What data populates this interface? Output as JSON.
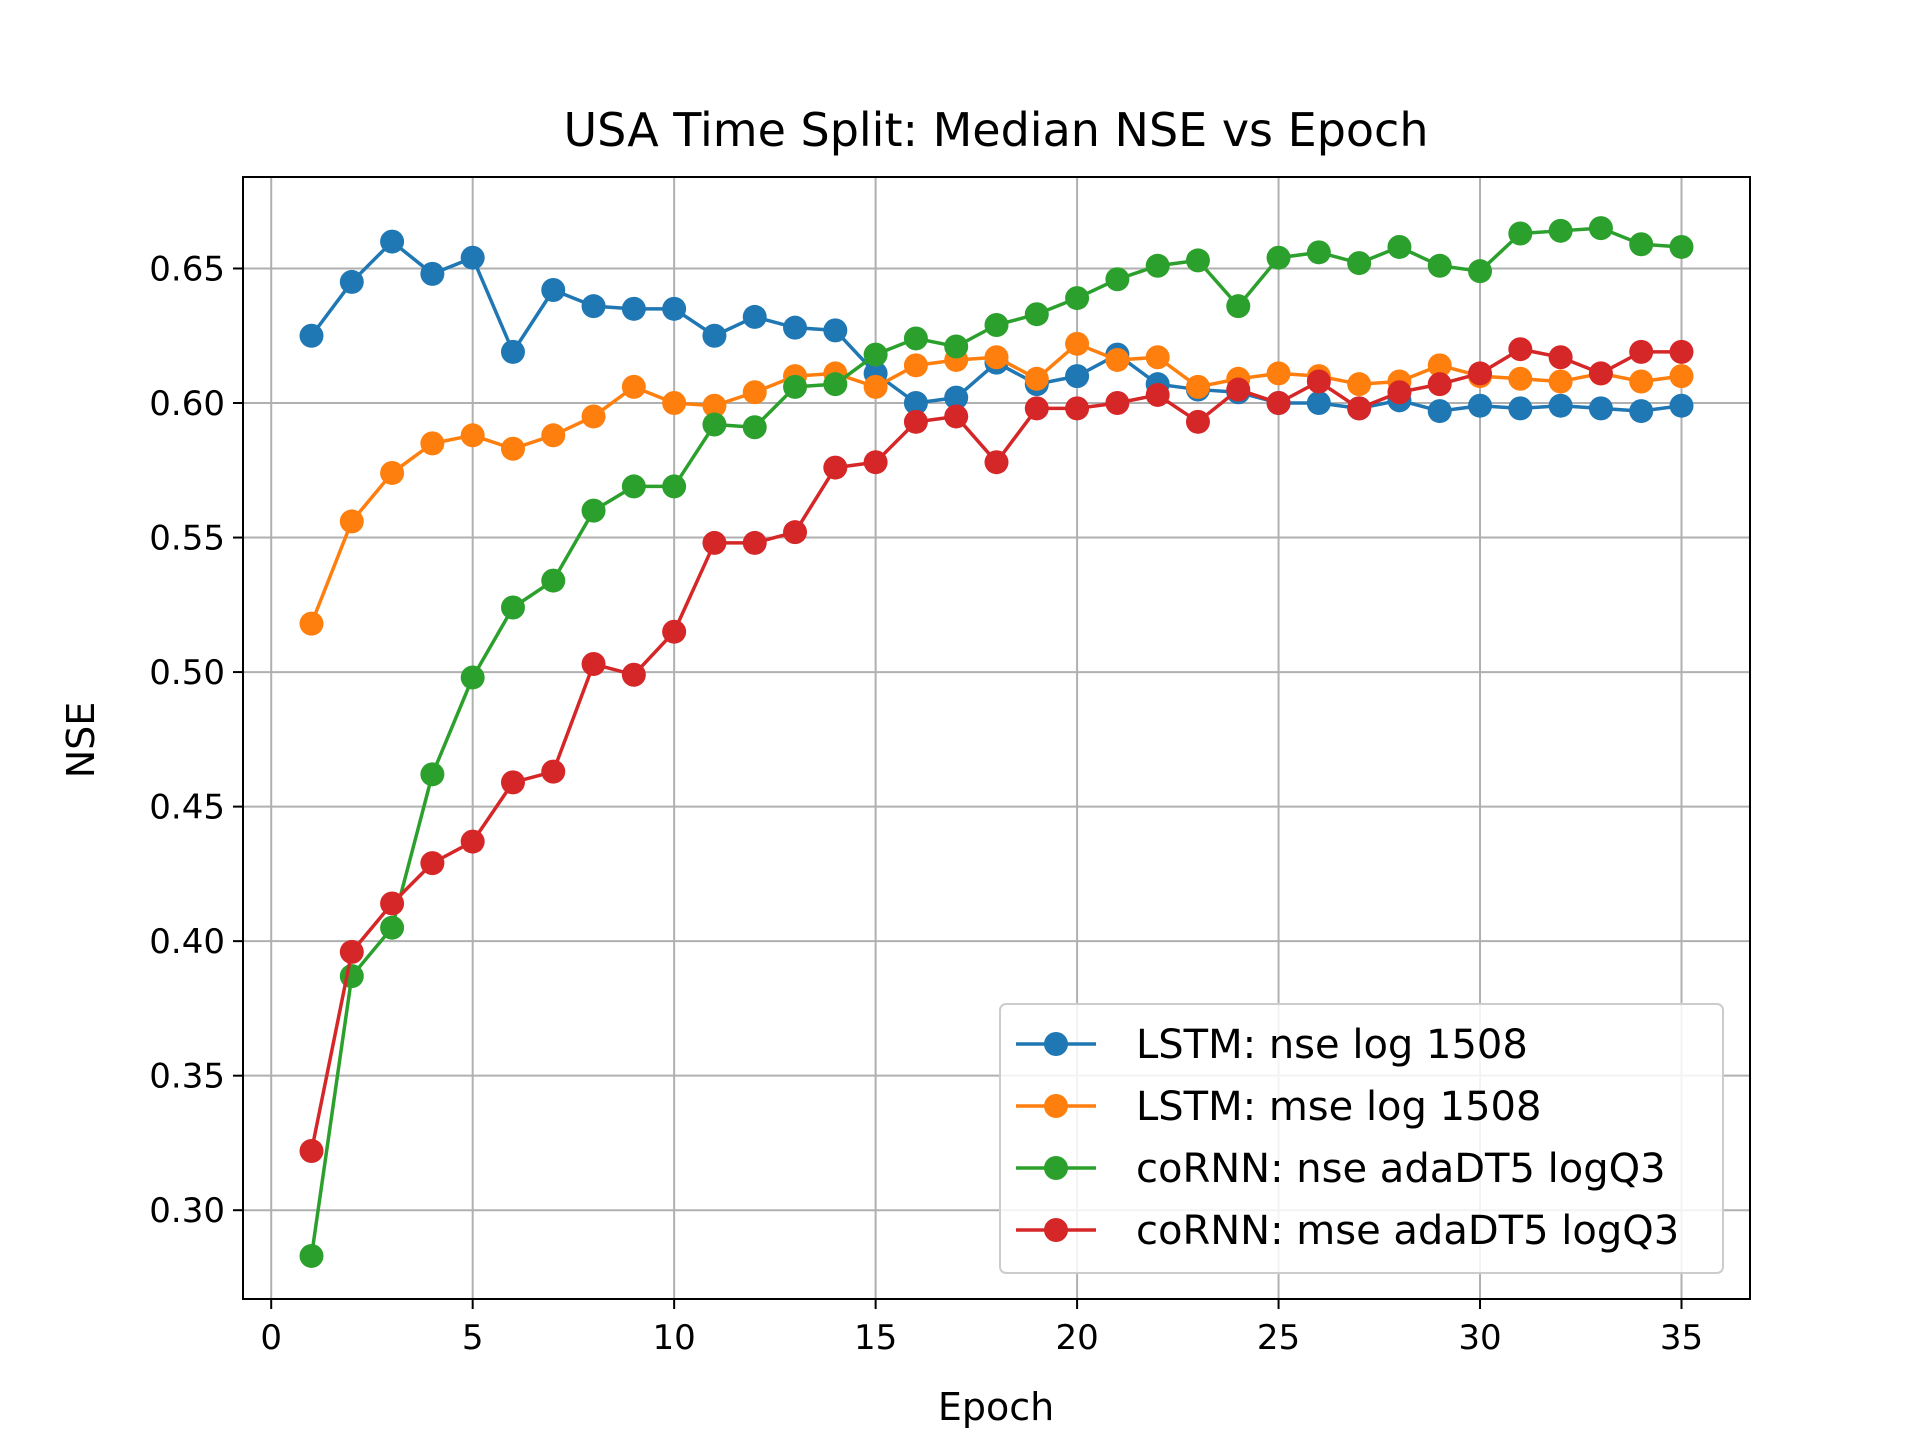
{
  "chart_data": {
    "type": "line",
    "title": "USA Time Split: Median NSE vs Epoch",
    "xlabel": "Epoch",
    "ylabel": "NSE",
    "xlim": [
      -0.7,
      36.7
    ],
    "ylim": [
      0.267,
      0.684
    ],
    "xticks": [
      0,
      5,
      10,
      15,
      20,
      25,
      30,
      35
    ],
    "yticks": [
      0.3,
      0.35,
      0.4,
      0.45,
      0.5,
      0.55,
      0.6,
      0.65
    ],
    "ytick_labels": [
      "0.30",
      "0.35",
      "0.40",
      "0.45",
      "0.50",
      "0.55",
      "0.60",
      "0.65"
    ],
    "grid": true,
    "legend_location": "lower-right",
    "x": [
      1,
      2,
      3,
      4,
      5,
      6,
      7,
      8,
      9,
      10,
      11,
      12,
      13,
      14,
      15,
      16,
      17,
      18,
      19,
      20,
      21,
      22,
      23,
      24,
      25,
      26,
      27,
      28,
      29,
      30,
      31,
      32,
      33,
      34,
      35
    ],
    "series": [
      {
        "name": "LSTM: nse log 1508",
        "color": "#1f77b4",
        "values": [
          0.625,
          0.645,
          0.66,
          0.648,
          0.654,
          0.619,
          0.642,
          0.636,
          0.635,
          0.635,
          0.625,
          0.632,
          0.628,
          0.627,
          0.611,
          0.6,
          0.602,
          0.615,
          0.607,
          0.61,
          0.618,
          0.607,
          0.605,
          0.604,
          0.6,
          0.6,
          0.598,
          0.601,
          0.597,
          0.599,
          0.598,
          0.599,
          0.598,
          0.597,
          0.599
        ]
      },
      {
        "name": "LSTM: mse log 1508",
        "color": "#ff7f0e",
        "values": [
          0.518,
          0.556,
          0.574,
          0.585,
          0.588,
          0.583,
          0.588,
          0.595,
          0.606,
          0.6,
          0.599,
          0.604,
          0.61,
          0.611,
          0.606,
          0.614,
          0.616,
          0.617,
          0.609,
          0.622,
          0.616,
          0.617,
          0.606,
          0.609,
          0.611,
          0.61,
          0.607,
          0.608,
          0.614,
          0.61,
          0.609,
          0.608,
          0.611,
          0.608,
          0.61
        ]
      },
      {
        "name": "coRNN: nse adaDT5 logQ3",
        "color": "#2ca02c",
        "values": [
          0.283,
          0.387,
          0.405,
          0.462,
          0.498,
          0.524,
          0.534,
          0.56,
          0.569,
          0.569,
          0.592,
          0.591,
          0.606,
          0.607,
          0.618,
          0.624,
          0.621,
          0.629,
          0.633,
          0.639,
          0.646,
          0.651,
          0.653,
          0.636,
          0.654,
          0.656,
          0.652,
          0.658,
          0.651,
          0.649,
          0.663,
          0.664,
          0.665,
          0.659,
          0.658
        ]
      },
      {
        "name": "coRNN: mse adaDT5 logQ3",
        "color": "#d62728",
        "values": [
          0.322,
          0.396,
          0.414,
          0.429,
          0.437,
          0.459,
          0.463,
          0.503,
          0.499,
          0.515,
          0.548,
          0.548,
          0.552,
          0.576,
          0.578,
          0.593,
          0.595,
          0.578,
          0.598,
          0.598,
          0.6,
          0.603,
          0.593,
          0.605,
          0.6,
          0.608,
          0.598,
          0.604,
          0.607,
          0.611,
          0.62,
          0.617,
          0.611,
          0.619,
          0.619
        ]
      }
    ]
  }
}
